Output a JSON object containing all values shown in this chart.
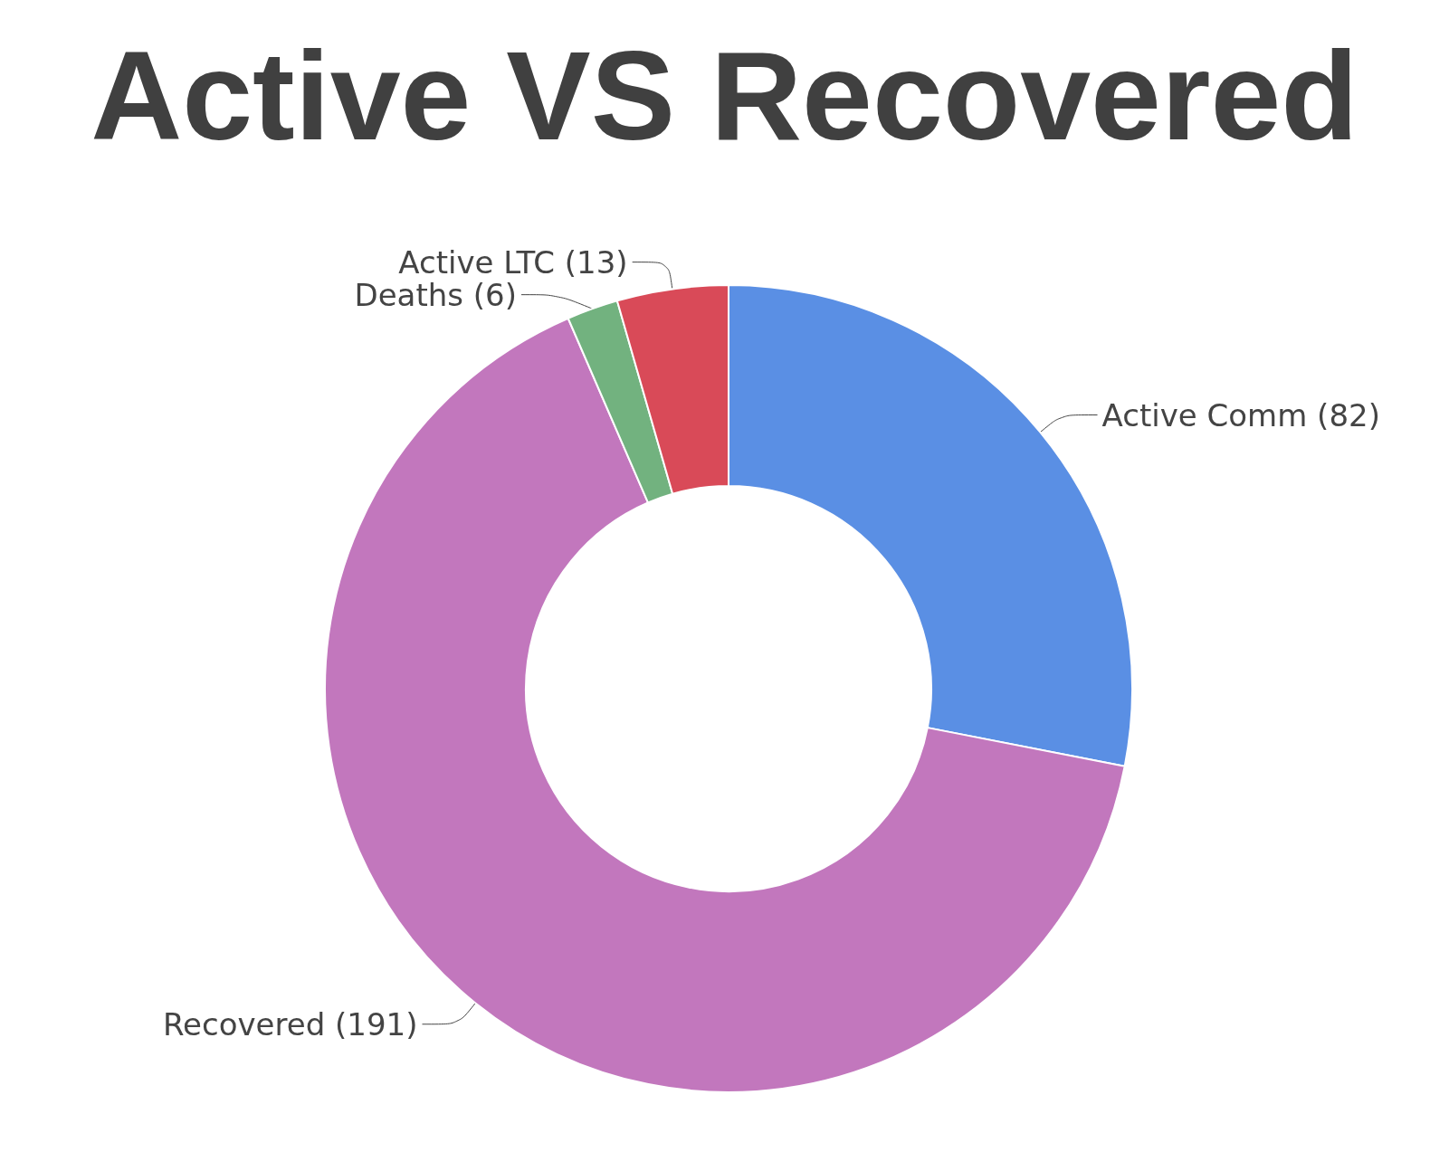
{
  "chart_data": {
    "type": "donut",
    "title": "Active VS Recovered",
    "categories": [
      "Active Comm",
      "Recovered",
      "Deaths",
      "Active LTC"
    ],
    "values": [
      82,
      191,
      6,
      13
    ],
    "value_labels": [
      "(82)",
      "(191)",
      "(6)",
      "(13)"
    ],
    "colors": [
      "#5a8fe4",
      "#c277bd",
      "#72b27f",
      "#d94a58"
    ],
    "legend": false
  }
}
